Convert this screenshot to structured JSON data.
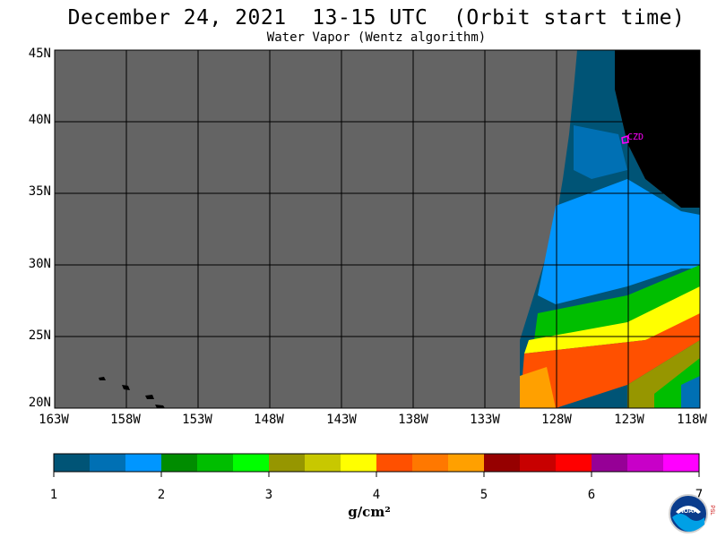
{
  "title": "December 24, 2021  13-15 UTC  (Orbit start time)",
  "subtitle": "Water Vapor (Wentz algorithm)",
  "map": {
    "lat_labels": [
      "45N",
      "40N",
      "35N",
      "30N",
      "25N",
      "20N"
    ],
    "lon_labels": [
      "163W",
      "158W",
      "153W",
      "148W",
      "143W",
      "138W",
      "133W",
      "128W",
      "123W",
      "118W"
    ],
    "lat_range": [
      20,
      45
    ],
    "lon_range": [
      -163,
      -118
    ],
    "station_label": "CZD",
    "colors": {
      "no_data": "#646464",
      "land": "#000000",
      "grid": "#000000",
      "station": "#ff00ff"
    }
  },
  "colorbar": {
    "labels": [
      "1",
      "2",
      "3",
      "4",
      "5",
      "6",
      "7"
    ],
    "range": [
      1,
      7
    ],
    "unit": "g/cm²",
    "colors": [
      "#005476",
      "#0070b4",
      "#0096ff",
      "#008c00",
      "#00be00",
      "#00ff00",
      "#969600",
      "#c8c800",
      "#ffff00",
      "#ff5000",
      "#ff7800",
      "#ffa000",
      "#960000",
      "#c80000",
      "#ff0000",
      "#960096",
      "#c800c8",
      "#ff00ff"
    ]
  },
  "logo": {
    "text": "NOAA",
    "side_text": "PSL"
  }
}
